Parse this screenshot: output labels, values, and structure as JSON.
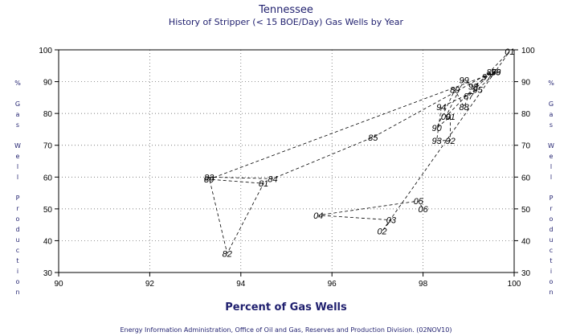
{
  "chart_data": {
    "type": "scatter",
    "title": "Tennessee",
    "subtitle": "History of Stripper (< 15 BOE/Day) Gas Wells by Year",
    "xlabel": "Percent of Gas Wells",
    "ylabel": "% Gas Well Production",
    "footer": "Energy Information Administration, Office of Oil and Gas, Reserves and Production Division. (02NOV10)",
    "xlim": [
      90,
      100
    ],
    "ylim": [
      30,
      100
    ],
    "xticks": [
      "90",
      "92",
      "94",
      "96",
      "98",
      "100"
    ],
    "yticks": [
      "30",
      "40",
      "50",
      "60",
      "70",
      "80",
      "90",
      "100"
    ],
    "grid": true,
    "connected": true,
    "colors": {
      "title": "#1f1f6e",
      "frame": "#000000",
      "grid": "#555555"
    },
    "points": [
      {
        "label": "79",
        "x": 99.6,
        "y": 93.0
      },
      {
        "label": "80",
        "x": 93.3,
        "y": 59.3
      },
      {
        "label": "81",
        "x": 94.5,
        "y": 58.0
      },
      {
        "label": "82",
        "x": 93.7,
        "y": 36.0
      },
      {
        "label": "83",
        "x": 93.3,
        "y": 60.0
      },
      {
        "label": "84",
        "x": 94.7,
        "y": 59.5
      },
      {
        "label": "85",
        "x": 96.9,
        "y": 72.5
      },
      {
        "label": "86",
        "x": 99.5,
        "y": 93.0
      },
      {
        "label": "87",
        "x": 99.0,
        "y": 85.5
      },
      {
        "label": "88",
        "x": 98.9,
        "y": 82.0
      },
      {
        "label": "89",
        "x": 98.7,
        "y": 87.5
      },
      {
        "label": "90",
        "x": 98.3,
        "y": 75.5
      },
      {
        "label": "91",
        "x": 98.6,
        "y": 79.0
      },
      {
        "label": "92",
        "x": 98.6,
        "y": 71.5
      },
      {
        "label": "93",
        "x": 98.3,
        "y": 71.5
      },
      {
        "label": "94",
        "x": 98.4,
        "y": 82.0
      },
      {
        "label": "95",
        "x": 99.2,
        "y": 87.5
      },
      {
        "label": "96",
        "x": 99.6,
        "y": 93.0
      },
      {
        "label": "97",
        "x": 99.4,
        "y": 91.5
      },
      {
        "label": "98",
        "x": 99.1,
        "y": 88.5
      },
      {
        "label": "99",
        "x": 98.9,
        "y": 90.5
      },
      {
        "label": "00",
        "x": 98.5,
        "y": 79.0
      },
      {
        "label": "01",
        "x": 99.9,
        "y": 99.5
      },
      {
        "label": "02",
        "x": 97.1,
        "y": 43.0
      },
      {
        "label": "03",
        "x": 97.3,
        "y": 46.5
      },
      {
        "label": "04",
        "x": 95.7,
        "y": 48.0
      },
      {
        "label": "05",
        "x": 97.9,
        "y": 52.5
      },
      {
        "label": "06",
        "x": 98.0,
        "y": 50.0
      }
    ]
  }
}
